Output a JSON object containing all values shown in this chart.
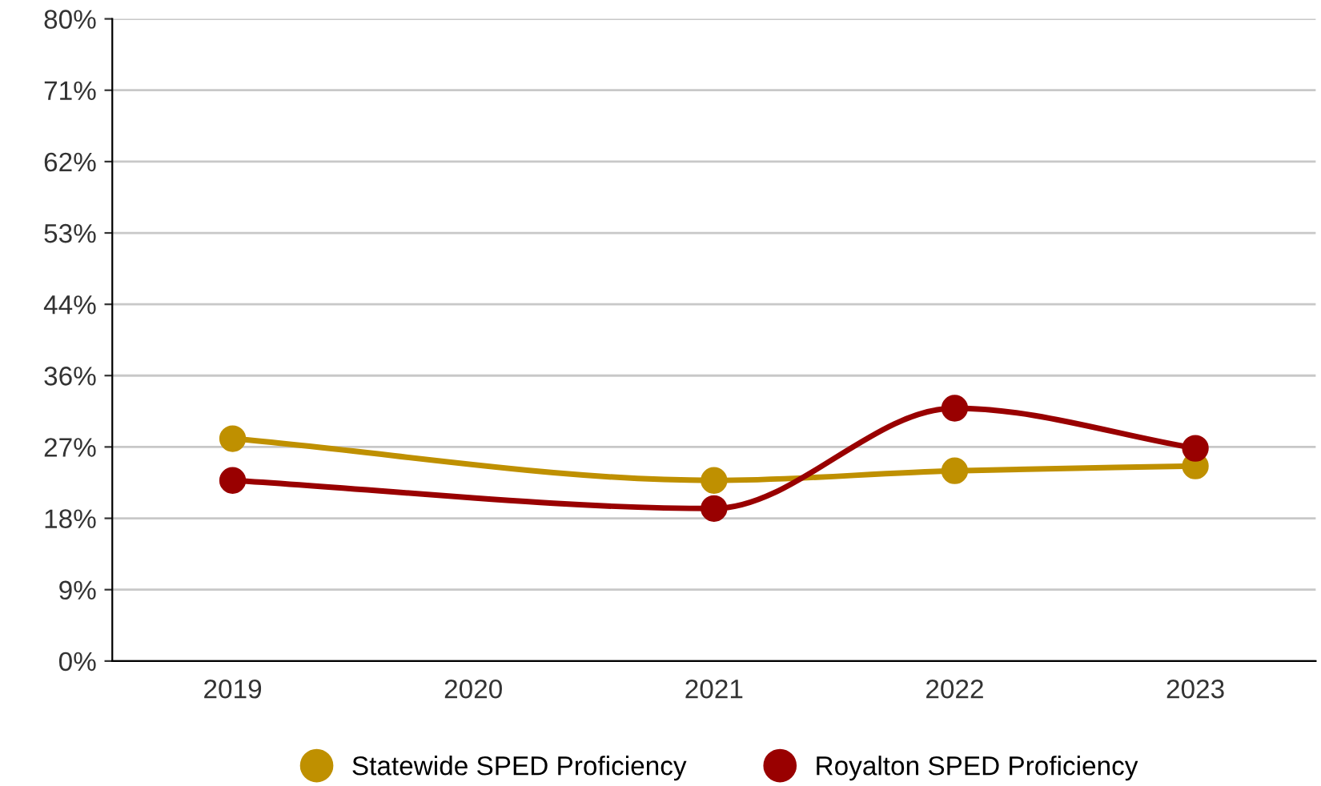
{
  "chart_data": {
    "type": "line",
    "xlim": [
      2018.5,
      2023.5
    ],
    "xticks": [
      2019,
      2020,
      2021,
      2022,
      2023
    ],
    "ylim": [
      0,
      80
    ],
    "yticks": [
      {
        "value": 0,
        "label": "0%"
      },
      {
        "value": 8.89,
        "label": "9%"
      },
      {
        "value": 17.78,
        "label": "18%"
      },
      {
        "value": 26.67,
        "label": "27%"
      },
      {
        "value": 35.56,
        "label": "36%"
      },
      {
        "value": 44.44,
        "label": "44%"
      },
      {
        "value": 53.33,
        "label": "53%"
      },
      {
        "value": 62.22,
        "label": "62%"
      },
      {
        "value": 71.11,
        "label": "71%"
      },
      {
        "value": 80,
        "label": "80%"
      }
    ],
    "series": [
      {
        "name": "Statewide SPED Proficiency",
        "color": "#bf9000",
        "x": [
          2019,
          2021,
          2022,
          2023
        ],
        "values": [
          27.7,
          22.5,
          23.7,
          24.3
        ]
      },
      {
        "name": "Royalton SPED Proficiency",
        "color": "#990000",
        "x": [
          2019,
          2021,
          2022,
          2023
        ],
        "values": [
          22.5,
          19.0,
          31.5,
          26.5
        ]
      }
    ],
    "grid": "y",
    "legend": "bottom",
    "marker": "circle",
    "line_style": "solid"
  }
}
